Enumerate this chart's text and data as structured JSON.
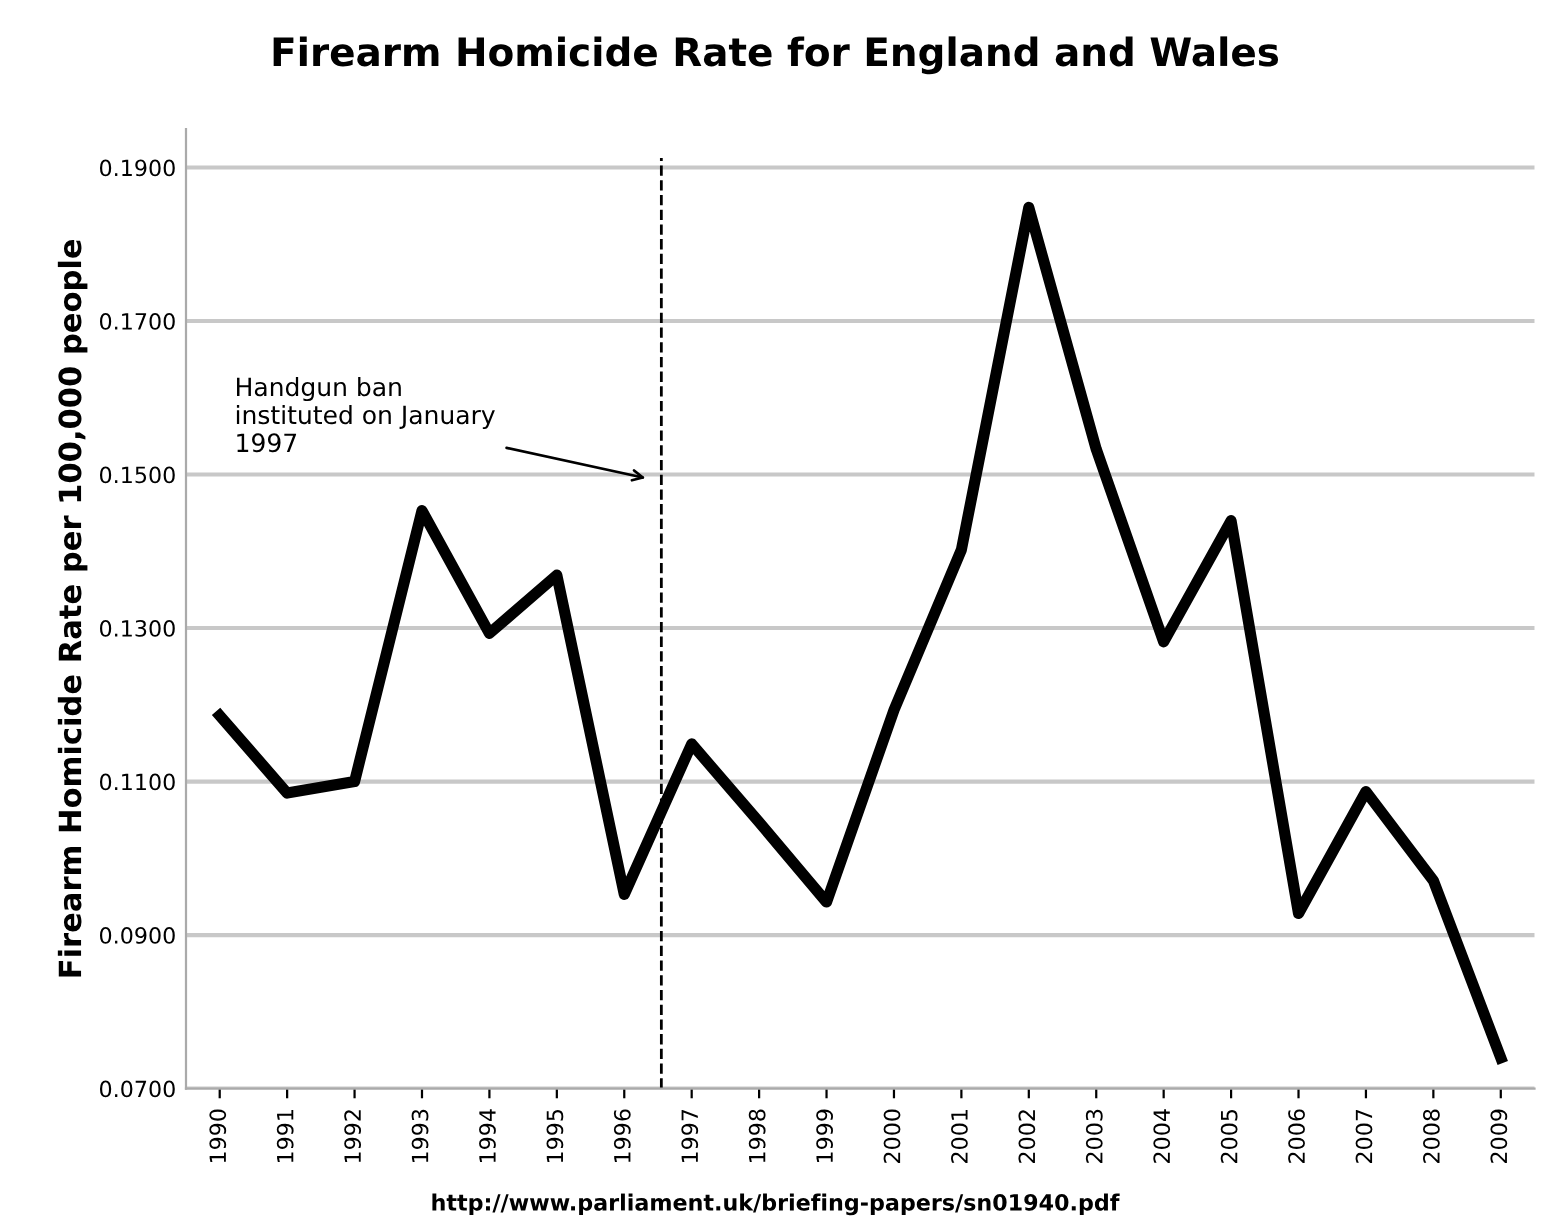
{
  "chart_data": {
    "type": "line",
    "title": "Firearm Homicide Rate for England and Wales",
    "ylabel": "Firearm Homicide Rate per 100,000 people",
    "x": [
      1990,
      1991,
      1992,
      1993,
      1994,
      1995,
      1996,
      1997,
      1998,
      1999,
      2000,
      2001,
      2002,
      2003,
      2004,
      2005,
      2006,
      2007,
      2008,
      2009
    ],
    "series": [
      {
        "color": "#000000",
        "values": [
          0.1186,
          0.1085,
          0.11,
          0.1453,
          0.1293,
          0.1369,
          0.0953,
          0.1149,
          0.1047,
          0.0943,
          0.1193,
          0.1402,
          0.1848,
          0.1533,
          0.1282,
          0.144,
          0.0928,
          0.1087,
          0.0971,
          0.074
        ]
      }
    ],
    "xlim": [
      1989.5,
      2009.5
    ],
    "xticks": [
      1990,
      1991,
      1992,
      1993,
      1994,
      1995,
      1996,
      1997,
      1998,
      1999,
      2000,
      2001,
      2002,
      2003,
      2004,
      2005,
      2006,
      2007,
      2008,
      2009
    ],
    "ylim": [
      0.07,
      0.195
    ],
    "yticks": [
      {
        "value": 0.07,
        "label": "0.0700"
      },
      {
        "value": 0.09,
        "label": "0.0900"
      },
      {
        "value": 0.11,
        "label": "0.1100"
      },
      {
        "value": 0.13,
        "label": "0.1300"
      },
      {
        "value": 0.15,
        "label": "0.1500"
      },
      {
        "value": 0.17,
        "label": "0.1700"
      },
      {
        "value": 0.19,
        "label": "0.1900"
      }
    ],
    "grid": "y",
    "legend": false,
    "marker": "none",
    "line_style": "solid",
    "ref_lines": [
      {
        "axis": "x",
        "value": 1996.55,
        "label": null,
        "color": "#000000",
        "line_style": "dashed"
      }
    ],
    "annotations": [
      "Handgun ban\ninstituted on January\n1997",
      "http://www.parliament.uk/briefing-papers/sn01940.pdf"
    ]
  }
}
